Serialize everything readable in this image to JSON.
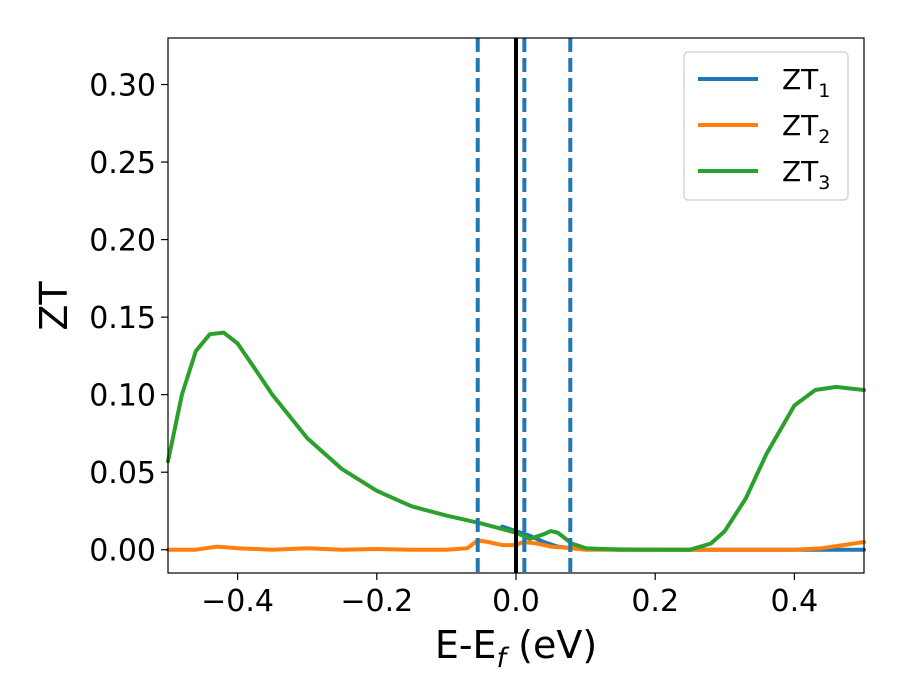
{
  "chart_data": {
    "type": "line",
    "xlabel": "E-E",
    "xlabel_sub": "f",
    "xlabel_unit": " (eV)",
    "ylabel": "ZT",
    "xlim": [
      -0.5,
      0.5
    ],
    "ylim": [
      -0.015,
      0.33
    ],
    "xticks": [
      -0.4,
      -0.2,
      0.0,
      0.2,
      0.4
    ],
    "xtick_labels": [
      "−0.4",
      "−0.2",
      "0.0",
      "0.2",
      "0.4"
    ],
    "yticks": [
      0.0,
      0.05,
      0.1,
      0.15,
      0.2,
      0.25,
      0.3
    ],
    "ytick_labels": [
      "0.00",
      "0.05",
      "0.10",
      "0.15",
      "0.20",
      "0.25",
      "0.30"
    ],
    "grid": false,
    "legend_position": "top-right",
    "vlines": [
      {
        "x": -0.055,
        "style": "dashed",
        "color": "#1f77b4"
      },
      {
        "x": 0.0,
        "style": "solid",
        "color": "#000000"
      },
      {
        "x": 0.012,
        "style": "dashed",
        "color": "#1f77b4"
      },
      {
        "x": 0.078,
        "style": "dashed",
        "color": "#1f77b4"
      }
    ],
    "series": [
      {
        "name": "ZT",
        "name_sub": "1",
        "color": "#1f77b4",
        "x": [
          -0.02,
          0.0,
          0.02,
          0.04,
          0.06,
          0.08,
          0.1,
          0.15,
          0.2,
          0.25,
          0.3,
          0.4,
          0.5
        ],
        "y": [
          0.015,
          0.012,
          0.009,
          0.005,
          0.002,
          0.001,
          0.0005,
          0.0002,
          0.0001,
          0.0,
          0.0,
          0.0,
          0.0
        ]
      },
      {
        "name": "ZT",
        "name_sub": "2",
        "color": "#ff7f0e",
        "x": [
          -0.5,
          -0.46,
          -0.43,
          -0.4,
          -0.35,
          -0.3,
          -0.25,
          -0.2,
          -0.15,
          -0.1,
          -0.07,
          -0.055,
          -0.04,
          -0.02,
          0.0,
          0.01,
          0.03,
          0.05,
          0.08,
          0.1,
          0.2,
          0.3,
          0.4,
          0.44,
          0.47,
          0.5
        ],
        "y": [
          0.0,
          0.0,
          0.002,
          0.001,
          0.0,
          0.001,
          0.0,
          0.0005,
          0.0,
          0.0,
          0.001,
          0.006,
          0.005,
          0.003,
          0.003,
          0.005,
          0.004,
          0.002,
          0.001,
          0.0,
          0.0,
          0.0,
          0.0,
          0.001,
          0.003,
          0.005
        ]
      },
      {
        "name": "ZT",
        "name_sub": "3",
        "color": "#2ca02c",
        "x": [
          -0.5,
          -0.48,
          -0.46,
          -0.44,
          -0.42,
          -0.4,
          -0.38,
          -0.35,
          -0.3,
          -0.25,
          -0.2,
          -0.15,
          -0.1,
          -0.05,
          0.0,
          0.02,
          0.04,
          0.05,
          0.06,
          0.08,
          0.1,
          0.15,
          0.2,
          0.25,
          0.28,
          0.3,
          0.33,
          0.36,
          0.4,
          0.43,
          0.46,
          0.48,
          0.5
        ],
        "y": [
          0.057,
          0.1,
          0.128,
          0.139,
          0.14,
          0.133,
          0.12,
          0.1,
          0.072,
          0.052,
          0.038,
          0.028,
          0.022,
          0.017,
          0.011,
          0.007,
          0.01,
          0.012,
          0.011,
          0.004,
          0.001,
          0.0,
          0.0,
          0.0,
          0.004,
          0.012,
          0.033,
          0.062,
          0.093,
          0.103,
          0.105,
          0.104,
          0.103
        ]
      }
    ]
  }
}
